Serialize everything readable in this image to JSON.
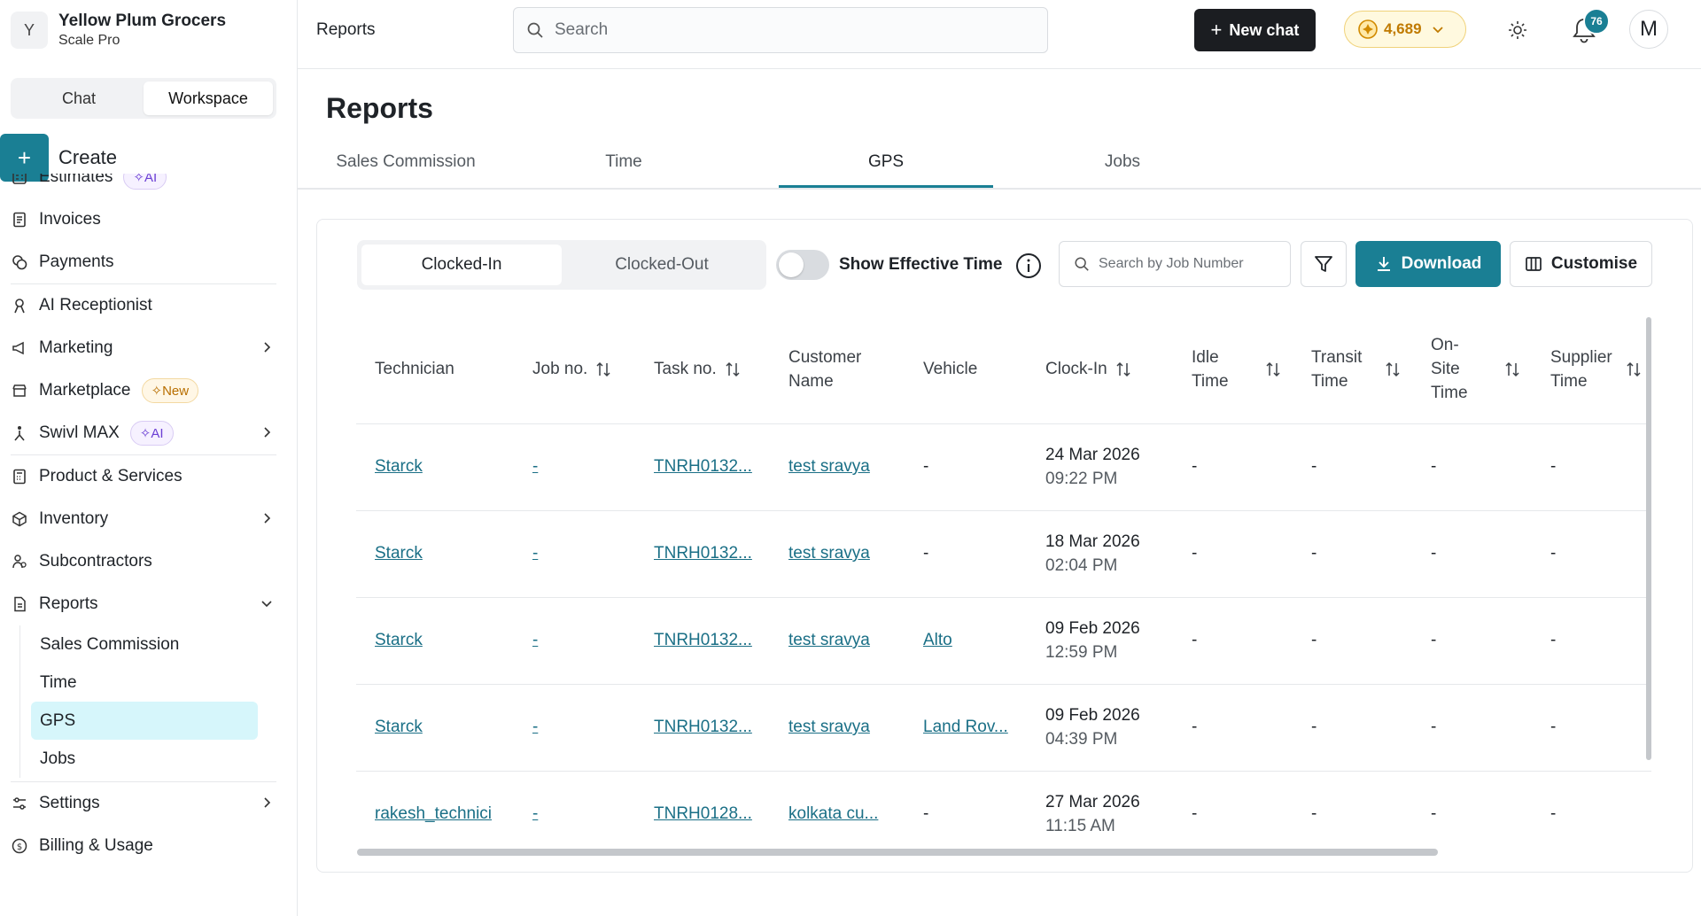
{
  "org": {
    "initial": "Y",
    "name": "Yellow Plum Grocers",
    "plan": "Scale Pro"
  },
  "mode_tabs": [
    "Chat",
    "Workspace"
  ],
  "create_label": "Create",
  "nav": {
    "estimates": "Estimates",
    "invoices": "Invoices",
    "payments": "Payments",
    "ai_receptionist": "AI Receptionist",
    "marketing": "Marketing",
    "marketplace": "Marketplace",
    "swivl_max": "Swivl MAX",
    "product_services": "Product & Services",
    "inventory": "Inventory",
    "subcontractors": "Subcontractors",
    "reports": "Reports",
    "settings": "Settings",
    "billing": "Billing & Usage",
    "badge_ai": "AI",
    "badge_new": "New",
    "reports_sub": [
      "Sales Commission",
      "Time",
      "GPS",
      "Jobs"
    ]
  },
  "topbar": {
    "breadcrumb": "Reports",
    "search_placeholder": "Search",
    "new_chat": "New chat",
    "credits": "4,689",
    "notifications": "76",
    "user_initial": "M"
  },
  "page": {
    "title": "Reports",
    "tabs": [
      "Sales Commission",
      "Time",
      "GPS",
      "Jobs"
    ],
    "active_tab": "GPS"
  },
  "toolbar": {
    "clock_tabs": [
      "Clocked-In",
      "Clocked-Out"
    ],
    "effective_time_label": "Show Effective Time",
    "job_search_placeholder": "Search by Job Number",
    "download": "Download",
    "customise": "Customise"
  },
  "table": {
    "headers": {
      "technician": "Technician",
      "job_no": "Job no.",
      "task_no": "Task no.",
      "customer_1": "Customer",
      "customer_2": "Name",
      "vehicle": "Vehicle",
      "clock_in": "Clock-In",
      "idle_1": "Idle",
      "idle_2": "Time",
      "transit_1": "Transit",
      "transit_2": "Time",
      "onsite_1": "On-",
      "onsite_2": "Site",
      "onsite_3": "Time",
      "supplier_1": "Supplier",
      "supplier_2": "Time"
    },
    "rows": [
      {
        "technician": "Starck",
        "job": "-",
        "task": "TNRH0132...",
        "customer": "test sravya",
        "vehicle": "-",
        "date": "24 Mar 2026",
        "time": "09:22 PM",
        "idle": "-",
        "transit": "-",
        "onsite": "-",
        "supplier": "-"
      },
      {
        "technician": "Starck",
        "job": "-",
        "task": "TNRH0132...",
        "customer": "test sravya",
        "vehicle": "-",
        "date": "18 Mar 2026",
        "time": "02:04 PM",
        "idle": "-",
        "transit": "-",
        "onsite": "-",
        "supplier": "-"
      },
      {
        "technician": "Starck",
        "job": "-",
        "task": "TNRH0132...",
        "customer": "test sravya",
        "vehicle": "Alto",
        "date": "09 Feb 2026",
        "time": "12:59 PM",
        "idle": "-",
        "transit": "-",
        "onsite": "-",
        "supplier": "-"
      },
      {
        "technician": "Starck",
        "job": "-",
        "task": "TNRH0132...",
        "customer": "test sravya",
        "vehicle": "Land Rov...",
        "date": "09 Feb 2026",
        "time": "04:39 PM",
        "idle": "-",
        "transit": "-",
        "onsite": "-",
        "supplier": "-"
      },
      {
        "technician": "rakesh_technici",
        "job": "-",
        "task": "TNRH0128...",
        "customer": "kolkata cu...",
        "vehicle": "-",
        "date": "27 Mar 2026",
        "time": "11:15 AM",
        "idle": "-",
        "transit": "-",
        "onsite": "-",
        "supplier": "-"
      }
    ]
  },
  "colors": {
    "accent": "#1a7f94",
    "link": "#1a6f86",
    "active_sub": "#d6f6fb",
    "dark_button": "#1b1d21"
  }
}
